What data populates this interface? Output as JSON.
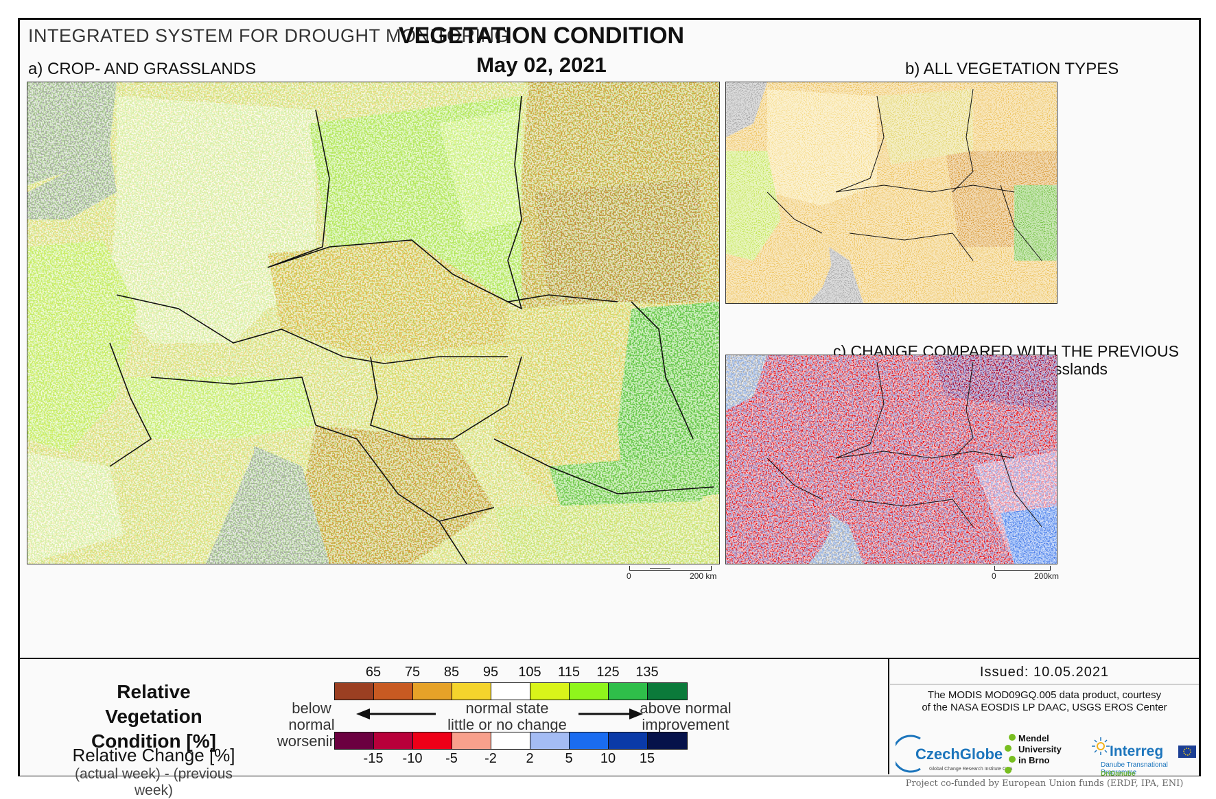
{
  "header": {
    "system": "INTEGRATED SYSTEM FOR DROUGHT MONITORING",
    "title": "VEGETATION CONDITION",
    "date": "May 02, 2021"
  },
  "panels": {
    "a_label": "a) CROP- AND GRASSLANDS",
    "b_label": "b) ALL VEGETATION TYPES",
    "c_label": "c) CHANGE COMPARED WITH THE PREVIOUS WEEK",
    "c_sublabel": "for crop- and grasslands"
  },
  "scalebars": {
    "a_zero": "0",
    "a_max": "200 km",
    "b_zero": "0",
    "b_max": "200km"
  },
  "legend": {
    "rvc_title": "Relative Vegetation Condition [%]",
    "rc_title": "Relative Change [%]",
    "rc_sub": "(actual week) - (previous week)",
    "below_1": "below normal",
    "below_2": "worsening",
    "normal_1": "normal state",
    "normal_2": "little or no change",
    "above_1": "above normal",
    "above_2": "improvement",
    "rvc_ticks": [
      "65",
      "75",
      "85",
      "95",
      "105",
      "115",
      "125",
      "135"
    ],
    "rvc_colors": [
      "#9b3f22",
      "#c85a22",
      "#e6a228",
      "#f4d42c",
      "#ffffff",
      "#d9f41a",
      "#8ff51c",
      "#2fbe4a",
      "#0b7a3a"
    ],
    "rc_ticks": [
      "-15",
      "-10",
      "-5",
      "-2",
      "2",
      "5",
      "10",
      "15"
    ],
    "rc_colors": [
      "#6b0040",
      "#b8003a",
      "#ee0018",
      "#f8a08c",
      "#ffffff",
      "#a4bcf4",
      "#1a6cf0",
      "#0a3aa8",
      "#06124a"
    ]
  },
  "footer": {
    "issued": "Issued: 10.05.2021",
    "credit_1": "The MODIS MOD09GQ.005 data product, courtesy",
    "credit_2": "of the NASA EOSDIS LP DAAC, USGS EROS Center",
    "logo_czechglobe": "CzechGlobe",
    "logo_czechglobe_sub": "Global Change Research Institute CAS",
    "logo_mendel_1": "Mendel",
    "logo_mendel_2": "University",
    "logo_mendel_3": "in Brno",
    "logo_interreg": "Interreg",
    "logo_interreg_2": "Danube Transnational Programme",
    "logo_interreg_3": "DriDanube",
    "cofund": "Project co-funded by European Union funds (ERDF, IPA, ENI)"
  }
}
